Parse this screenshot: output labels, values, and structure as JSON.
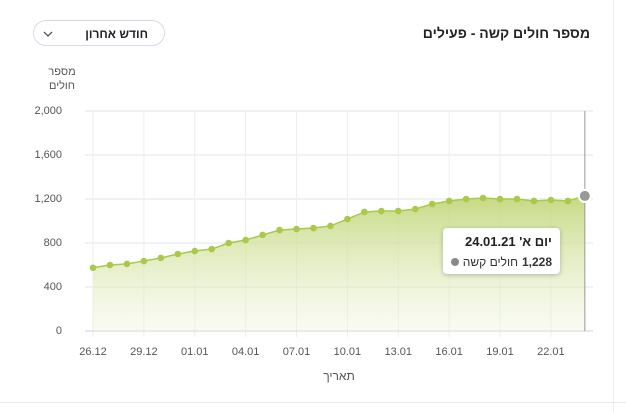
{
  "chart_data": {
    "type": "area-line",
    "title": "מספר חולים קשה - פעילים",
    "period_select": "חודש אחרון",
    "y_label": [
      "מספר",
      "חולים"
    ],
    "x_label": "תאריך",
    "categories": [
      "26.12",
      null,
      null,
      "29.12",
      null,
      null,
      "01.01",
      null,
      null,
      "04.01",
      null,
      null,
      "07.01",
      null,
      null,
      "10.01",
      null,
      null,
      "13.01",
      null,
      null,
      "16.01",
      null,
      null,
      "19.01",
      null,
      null,
      "22.01",
      null,
      null
    ],
    "series": [
      {
        "name": "חולים קשה",
        "color": "#aac94a",
        "values": [
          575,
          600,
          610,
          636,
          664,
          700,
          727,
          745,
          800,
          827,
          873,
          918,
          927,
          936,
          955,
          1018,
          1082,
          1091,
          1091,
          1109,
          1155,
          1182,
          1200,
          1209,
          1200,
          1200,
          1182,
          1191,
          1182,
          1228
        ],
        "value_labels": [
          null,
          null,
          null,
          null,
          null,
          null,
          null,
          null,
          null,
          null,
          null,
          null,
          null,
          null,
          null,
          null,
          null,
          null,
          null,
          null,
          null,
          null,
          null,
          null,
          null,
          null,
          null,
          null,
          null,
          "1,228"
        ]
      }
    ],
    "tooltip_title": "יום א' 24.01.21",
    "ylim": [
      0,
      2000
    ],
    "yticks": [
      0,
      400,
      800,
      {
        "value": 1200,
        "label": "1,200"
      },
      {
        "value": 1600,
        "label": "1,600"
      },
      {
        "value": 2000,
        "label": "2,000"
      }
    ],
    "grid": true
  }
}
